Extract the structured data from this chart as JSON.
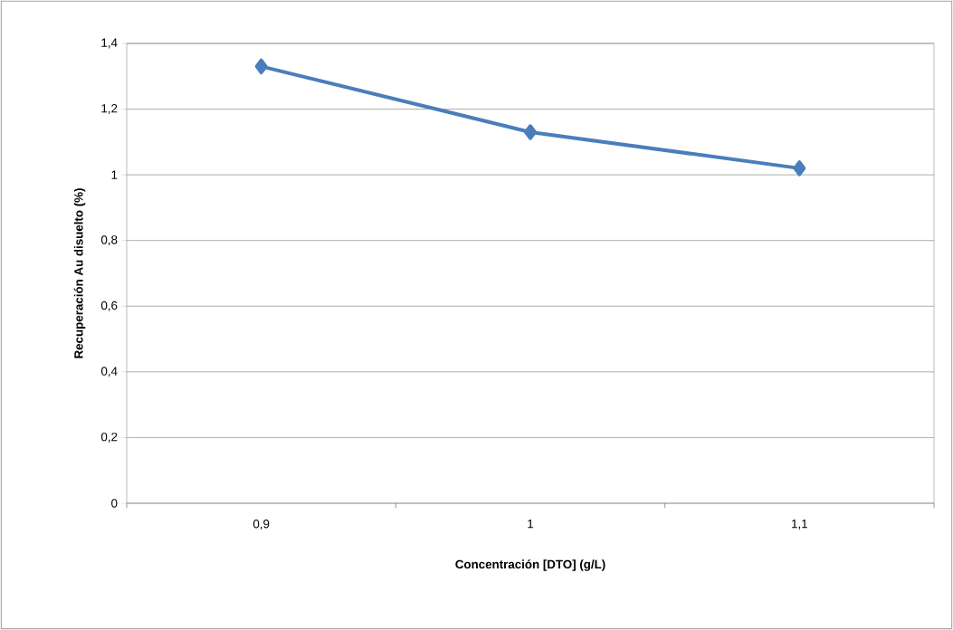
{
  "chart_data": {
    "type": "line",
    "xlabel": "Concentración [DTO] (g/L)",
    "ylabel": "Recuperación Au disuelto (%)",
    "categories": [
      "0,9",
      "1",
      "1,1"
    ],
    "series": [
      {
        "color": "#4a7ebb",
        "values": [
          1.33,
          1.13,
          1.02
        ]
      }
    ],
    "ylim": [
      0,
      1.4
    ],
    "yticks": [
      0,
      {
        "value": 0.2,
        "label": "0,2"
      },
      {
        "value": 0.4,
        "label": "0,4"
      },
      {
        "value": 0.6,
        "label": "0,6"
      },
      {
        "value": 0.8,
        "label": "0,8"
      },
      1,
      {
        "value": 1.2,
        "label": "1,2"
      },
      {
        "value": 1.4,
        "label": "1,4"
      }
    ],
    "grid": "y",
    "marker": "diamond",
    "line_style": "solid"
  }
}
